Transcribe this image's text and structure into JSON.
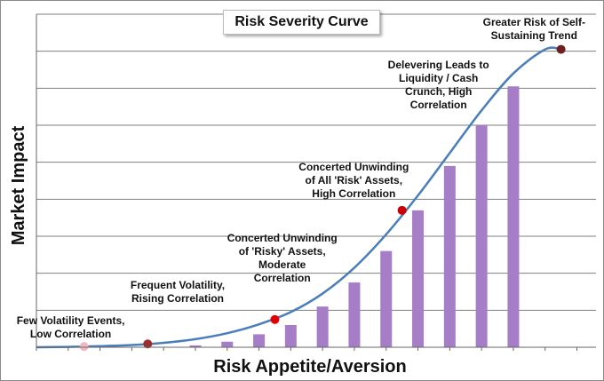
{
  "chart_data": {
    "type": "bar",
    "title": "Risk Severity Curve",
    "xlabel": "Risk Appetite/Aversion",
    "ylabel": "Market Impact",
    "ylim": [
      0,
      9
    ],
    "grid": true,
    "legend": "none",
    "bars": {
      "x": [
        5,
        6,
        7,
        8,
        9,
        10,
        11,
        12,
        13,
        14,
        15
      ],
      "values": [
        0.05,
        0.15,
        0.35,
        0.6,
        1.1,
        1.75,
        2.6,
        3.7,
        4.9,
        6.0,
        7.05
      ]
    },
    "curve": {
      "x": [
        0,
        1,
        2,
        3,
        4,
        5,
        6,
        7,
        8,
        9,
        10,
        11,
        12,
        13,
        14,
        15,
        16,
        16.5
      ],
      "values": [
        0,
        0.01,
        0.03,
        0.06,
        0.12,
        0.22,
        0.38,
        0.62,
        0.95,
        1.45,
        2.15,
        3.05,
        4.1,
        5.25,
        6.4,
        7.4,
        8.05,
        8.05
      ]
    },
    "points": [
      {
        "x": 1.5,
        "y": 0.02,
        "color": "#f2b8c0",
        "label": "Few Volatility Events,\nLow Correlation"
      },
      {
        "x": 3.5,
        "y": 0.09,
        "color": "#9b2f2f",
        "label": "Frequent Volatility,\nRising Correlation"
      },
      {
        "x": 7.5,
        "y": 0.75,
        "color": "#e30000",
        "label": "Concerted Unwinding\nof 'Risky' Assets,\nModerate\nCorrelation"
      },
      {
        "x": 11.5,
        "y": 3.7,
        "color": "#cc0000",
        "label": "Concerted Unwinding\nof All 'Risk' Assets,\nHigh Correlation"
      },
      {
        "x": 16.5,
        "y": 8.05,
        "color": "#6e1f1f",
        "label": "Greater Risk of Self-\nSustaining Trend"
      },
      {
        "label": "Delevering Leads to\nLiquidity / Cash\nCrunch, High\nCorrelation"
      }
    ],
    "colors": {
      "bars": "#a67dc7",
      "curve": "#4a7ebb",
      "grid": "#7f7f7f"
    }
  }
}
